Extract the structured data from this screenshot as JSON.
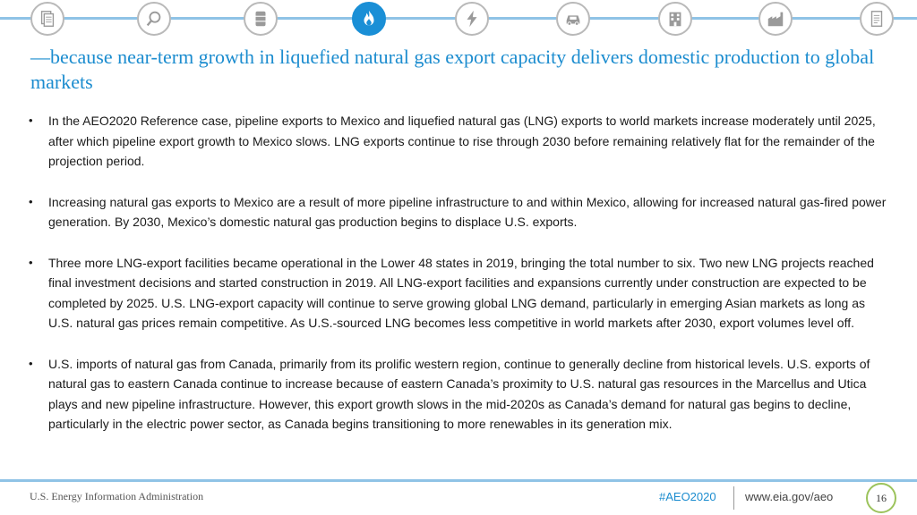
{
  "nav": {
    "icons": [
      "documents-icon",
      "magnifier-icon",
      "oil-barrel-icon",
      "natural-gas-flame-icon",
      "electricity-bolt-icon",
      "car-icon",
      "buildings-icon",
      "factory-icon",
      "report-icon"
    ],
    "active_index": 3
  },
  "slide": {
    "title": "—because near-term growth in liquefied natural gas export capacity delivers domestic production to global markets",
    "bullets": [
      "In the AEO2020 Reference case, pipeline exports to Mexico and liquefied natural gas (LNG) exports to world markets increase moderately until 2025, after which pipeline export growth to Mexico slows. LNG exports continue to rise through 2030 before remaining relatively flat for the remainder of the projection period.",
      "Increasing natural gas exports to Mexico are a result of more pipeline infrastructure to and within Mexico, allowing for increased natural gas-fired power generation. By 2030, Mexico’s domestic natural gas production begins to displace U.S. exports.",
      "Three more LNG-export facilities became operational in the Lower 48 states in 2019, bringing the total number to six. Two new LNG projects reached final investment decisions and started construction in 2019. All LNG-export facilities and expansions currently under construction are expected to be completed by 2025. U.S. LNG-export capacity will continue to serve growing global LNG demand, particularly in emerging Asian markets as long as U.S. natural gas prices remain competitive. As U.S.-sourced LNG becomes less competitive in world markets after 2030, export volumes level off.",
      "U.S. imports of natural gas from Canada, primarily from its prolific western region, continue to generally decline from historical levels. U.S. exports of natural gas to eastern Canada continue to increase because of eastern Canada’s proximity to U.S. natural gas resources in the Marcellus and Utica plays and new pipeline infrastructure. However, this export growth slows in the mid-2020s as Canada’s demand for natural gas begins to decline, particularly in the electric power sector, as Canada begins transitioning to more renewables in its generation mix."
    ]
  },
  "footer": {
    "agency": "U.S. Energy Information Administration",
    "hashtag": "#AEO2020",
    "url": "www.eia.gov/aeo",
    "page_number": "16"
  },
  "colors": {
    "accent_blue": "#1b8ccf",
    "line_blue": "#8fc3e6",
    "page_circle_green": "#9cc35c"
  }
}
